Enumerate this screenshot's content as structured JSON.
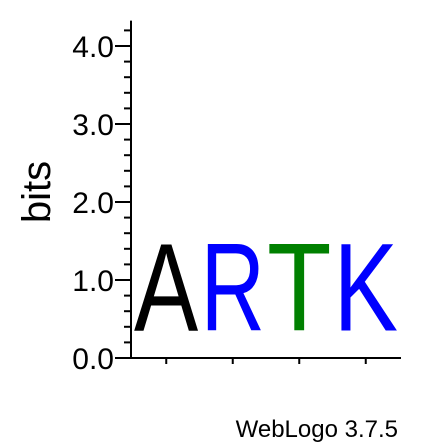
{
  "chart_data": {
    "type": "sequence-logo",
    "title": "",
    "ylabel": "bits",
    "xlabel": "",
    "ylim": [
      0,
      4.3
    ],
    "yticks": [
      {
        "value": 0.0,
        "label": "0.0"
      },
      {
        "value": 1.0,
        "label": "1.0"
      },
      {
        "value": 2.0,
        "label": "2.0"
      },
      {
        "value": 3.0,
        "label": "3.0"
      },
      {
        "value": 4.0,
        "label": "4.0"
      }
    ],
    "minor_tick_step": 0.2,
    "positions": [
      {
        "index": 1,
        "letters": [
          {
            "letter": "A",
            "height": 1.8,
            "color": "#000000"
          }
        ]
      },
      {
        "index": 2,
        "letters": [
          {
            "letter": "R",
            "height": 1.8,
            "color": "#0000ff"
          }
        ]
      },
      {
        "index": 3,
        "letters": [
          {
            "letter": "T",
            "height": 1.8,
            "color": "#008000"
          }
        ]
      },
      {
        "index": 4,
        "letters": [
          {
            "letter": "K",
            "height": 1.8,
            "color": "#0000ff"
          }
        ]
      }
    ],
    "footer": "WebLogo 3.7.5"
  }
}
